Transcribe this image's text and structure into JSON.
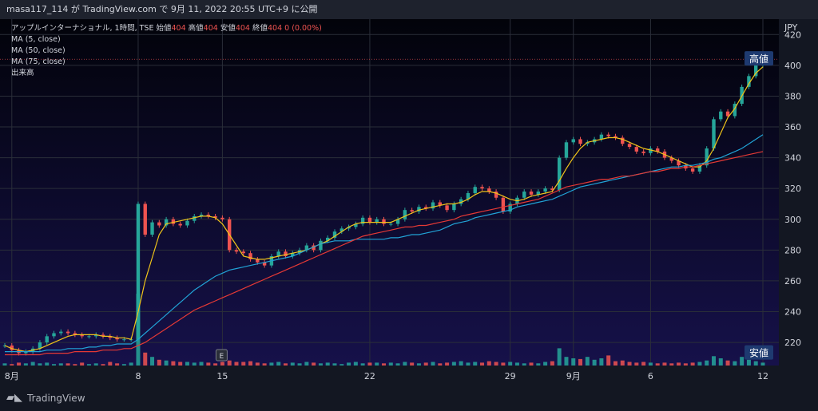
{
  "header": {
    "publish_line": "masa117_114 が TradingView.com で 9月 11, 2022 20:55 UTC+9 に公開"
  },
  "footer": {
    "brand": "TradingView",
    "icon": "tradingview-logo-icon"
  },
  "legend": {
    "symbol_line": "アップルインターナショナル, 1時間, TSE",
    "ohlc": [
      {
        "label": "始値",
        "value": "404"
      },
      {
        "label": "高値",
        "value": "404"
      },
      {
        "label": "安値",
        "value": "404"
      },
      {
        "label": "終値",
        "value": "404"
      }
    ],
    "change": "0 (0.00%)",
    "indicators": [
      "MA (5, close)",
      "MA (50, close)",
      "MA (75, close)",
      "出来高"
    ],
    "event_marker": "E"
  },
  "colors": {
    "up": "#26a69a",
    "down": "#ef5350",
    "vol_up": "#26a69a",
    "vol_down": "#ef5350",
    "ma5": "#f0c419",
    "ma50": "#21a3d6",
    "ma75": "#e53935",
    "bg_top": "#02030a",
    "bg_bottom": "#16114a"
  },
  "chart_data": {
    "type": "line",
    "currency": "JPY",
    "ylim": [
      205,
      430
    ],
    "y_ticks": [
      220,
      240,
      260,
      280,
      300,
      320,
      340,
      360,
      380,
      400,
      420
    ],
    "x_tick_labels": [
      "8月",
      "8",
      "15",
      "22",
      "29",
      "9月",
      "6",
      "12"
    ],
    "price_labels": [
      {
        "label": "高値",
        "value": 404
      },
      {
        "label": "安値",
        "value": 213
      }
    ],
    "series": [
      {
        "name": "Price",
        "kind": "candle_close",
        "values": [
          218,
          215,
          213,
          214,
          216,
          220,
          224,
          226,
          227,
          226,
          225,
          224,
          224,
          225,
          224,
          223,
          222,
          222,
          222,
          310,
          290,
          298,
          296,
          300,
          297,
          296,
          299,
          302,
          303,
          302,
          301,
          300,
          280,
          279,
          278,
          274,
          272,
          270,
          276,
          279,
          276,
          278,
          280,
          283,
          280,
          286,
          288,
          292,
          294,
          295,
          297,
          301,
          298,
          300,
          297,
          297,
          300,
          306,
          305,
          308,
          307,
          311,
          309,
          306,
          310,
          313,
          317,
          321,
          320,
          318,
          314,
          305,
          310,
          314,
          318,
          316,
          318,
          320,
          319,
          340,
          350,
          352,
          349,
          350,
          352,
          355,
          354,
          353,
          349,
          347,
          344,
          343,
          346,
          344,
          340,
          338,
          335,
          333,
          331,
          335,
          346,
          365,
          370,
          367,
          375,
          386,
          393,
          400,
          404
        ]
      },
      {
        "name": "MA (5, close)",
        "values": [
          218,
          216,
          215,
          214,
          215,
          216,
          218,
          220,
          222,
          224,
          225,
          225,
          225,
          225,
          224,
          224,
          223,
          223,
          222,
          240,
          260,
          275,
          290,
          297,
          298,
          299,
          300,
          301,
          302,
          302,
          301,
          297,
          290,
          283,
          276,
          275,
          274,
          274,
          275,
          276,
          277,
          278,
          279,
          280,
          282,
          284,
          286,
          289,
          292,
          295,
          297,
          298,
          298,
          298,
          298,
          298,
          300,
          302,
          304,
          306,
          307,
          308,
          309,
          310,
          310,
          311,
          313,
          316,
          318,
          318,
          317,
          315,
          313,
          312,
          313,
          315,
          316,
          317,
          318,
          325,
          333,
          340,
          346,
          350,
          351,
          352,
          353,
          353,
          352,
          350,
          348,
          346,
          345,
          344,
          342,
          340,
          338,
          336,
          334,
          334,
          338,
          346,
          356,
          366,
          372,
          380,
          388,
          395,
          399
        ]
      },
      {
        "name": "MA (50, close)",
        "values": [
          214,
          214,
          214,
          214,
          214,
          214,
          215,
          215,
          215,
          216,
          216,
          216,
          217,
          217,
          218,
          218,
          219,
          219,
          219,
          222,
          226,
          230,
          234,
          238,
          242,
          246,
          250,
          254,
          257,
          260,
          263,
          265,
          267,
          268,
          269,
          270,
          271,
          272,
          273,
          274,
          275,
          276,
          278,
          280,
          282,
          284,
          285,
          286,
          286,
          286,
          287,
          287,
          287,
          287,
          287,
          288,
          288,
          289,
          290,
          290,
          291,
          292,
          293,
          295,
          297,
          298,
          299,
          301,
          302,
          303,
          304,
          305,
          306,
          308,
          309,
          310,
          311,
          312,
          313,
          315,
          317,
          319,
          321,
          322,
          323,
          324,
          325,
          326,
          327,
          328,
          329,
          330,
          331,
          332,
          333,
          334,
          334,
          335,
          335,
          336,
          337,
          339,
          340,
          342,
          344,
          346,
          349,
          352,
          355
        ]
      },
      {
        "name": "MA (75, close)",
        "values": [
          212,
          212,
          212,
          212,
          212,
          212,
          213,
          213,
          213,
          213,
          214,
          214,
          214,
          214,
          215,
          215,
          215,
          216,
          216,
          218,
          220,
          223,
          226,
          229,
          232,
          235,
          238,
          241,
          243,
          245,
          247,
          249,
          251,
          253,
          255,
          257,
          259,
          261,
          263,
          265,
          267,
          269,
          271,
          273,
          275,
          277,
          279,
          281,
          283,
          285,
          287,
          289,
          290,
          291,
          292,
          293,
          294,
          295,
          295,
          296,
          296,
          297,
          298,
          299,
          300,
          302,
          303,
          304,
          305,
          306,
          307,
          308,
          309,
          310,
          311,
          312,
          313,
          315,
          317,
          319,
          321,
          322,
          323,
          324,
          325,
          326,
          326,
          327,
          328,
          328,
          329,
          330,
          331,
          331,
          332,
          333,
          333,
          334,
          334,
          335,
          336,
          337,
          338,
          339,
          340,
          341,
          342,
          343,
          344
        ]
      },
      {
        "name": "出来高",
        "kind": "volume_relative",
        "values": [
          0.03,
          0.02,
          0.04,
          0.03,
          0.05,
          0.03,
          0.04,
          0.02,
          0.03,
          0.03,
          0.02,
          0.04,
          0.02,
          0.03,
          0.02,
          0.05,
          0.03,
          0.02,
          0.04,
          1.0,
          0.18,
          0.12,
          0.08,
          0.07,
          0.06,
          0.05,
          0.05,
          0.04,
          0.05,
          0.04,
          0.03,
          0.05,
          0.07,
          0.05,
          0.05,
          0.06,
          0.04,
          0.03,
          0.04,
          0.05,
          0.03,
          0.04,
          0.03,
          0.05,
          0.04,
          0.03,
          0.04,
          0.03,
          0.02,
          0.04,
          0.05,
          0.03,
          0.04,
          0.04,
          0.03,
          0.04,
          0.03,
          0.05,
          0.04,
          0.03,
          0.04,
          0.05,
          0.03,
          0.04,
          0.05,
          0.06,
          0.04,
          0.05,
          0.04,
          0.06,
          0.05,
          0.04,
          0.05,
          0.04,
          0.03,
          0.04,
          0.03,
          0.05,
          0.06,
          0.24,
          0.12,
          0.1,
          0.09,
          0.12,
          0.08,
          0.1,
          0.14,
          0.06,
          0.07,
          0.05,
          0.04,
          0.05,
          0.04,
          0.03,
          0.04,
          0.03,
          0.04,
          0.03,
          0.04,
          0.05,
          0.07,
          0.13,
          0.1,
          0.07,
          0.06,
          0.12,
          0.08,
          0.06,
          0.04
        ]
      }
    ]
  }
}
